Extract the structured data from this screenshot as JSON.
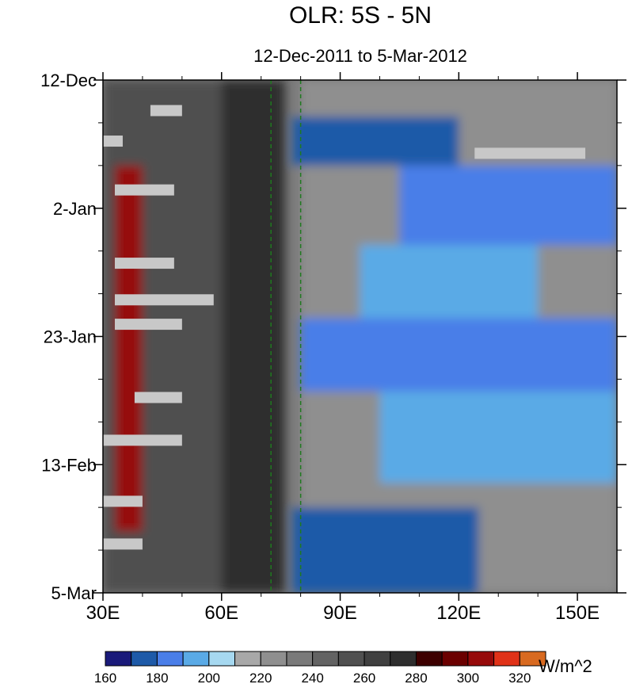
{
  "chart_data": {
    "type": "heatmap",
    "title": "OLR: 5S - 5N",
    "subtitle": "12-Dec-2011 to 5-Mar-2012",
    "colorbar_units": "W/m^2",
    "x_axis": {
      "range": [
        30,
        160
      ],
      "ticks": [
        30,
        60,
        90,
        120,
        150
      ],
      "tick_labels": [
        "30E",
        "60E",
        "90E",
        "120E",
        "150E"
      ]
    },
    "y_axis": {
      "range": [
        "12-Dec-2011",
        "5-Mar-2012"
      ],
      "ticks": [
        "12-Dec-2011",
        "2-Jan-2012",
        "23-Jan-2012",
        "13-Feb-2012",
        "5-Mar-2012"
      ],
      "tick_labels": [
        "12-Dec",
        "2-Jan",
        "23-Jan",
        "13-Feb",
        "5-Mar"
      ],
      "reversed": true
    },
    "reference_lines": {
      "longitudes": [
        72.5,
        80
      ],
      "color": "#1f7a1f",
      "style": "dashed"
    },
    "contour_levels": [
      160,
      170,
      180,
      190,
      200,
      210,
      220,
      230,
      240,
      250,
      260,
      270,
      280,
      290,
      300,
      310,
      320,
      330
    ],
    "colorbar_labels": [
      "160",
      "180",
      "200",
      "220",
      "240",
      "260",
      "280",
      "300",
      "320"
    ],
    "colorbar_colors": [
      "#1a1a7a",
      "#1e5aa8",
      "#4a7ee8",
      "#5aaae6",
      "#a6d8f0",
      "#a8a8a8",
      "#8f8f8f",
      "#7a7a7a",
      "#636363",
      "#505050",
      "#404040",
      "#2e2e2e",
      "#3d0000",
      "#6b0000",
      "#960a0a",
      "#e03218",
      "#d86a20"
    ],
    "missing_color": "#c8c8c8",
    "regions": [
      {
        "lon": [
          30,
          70
        ],
        "date": [
          "12-Dec-2011",
          "5-Mar-2012"
        ],
        "approx_value": 250
      },
      {
        "lon": [
          60,
          76
        ],
        "date": [
          "12-Dec-2011",
          "5-Mar-2012"
        ],
        "approx_value": 275
      },
      {
        "lon": [
          33,
          40
        ],
        "date": [
          "26-Dec-2011",
          "24-Feb-2012"
        ],
        "approx_value": 300
      },
      {
        "lon": [
          80,
          160
        ],
        "date": [
          "12-Dec-2011",
          "5-Mar-2012"
        ],
        "approx_value": 220
      },
      {
        "lon": [
          78,
          120
        ],
        "date": [
          "18-Dec-2011",
          "26-Dec-2011"
        ],
        "approx_value": 175
      },
      {
        "lon": [
          105,
          160
        ],
        "date": [
          "26-Dec-2011",
          "8-Jan-2012"
        ],
        "approx_value": 185
      },
      {
        "lon": [
          95,
          140
        ],
        "date": [
          "8-Jan-2012",
          "20-Jan-2012"
        ],
        "approx_value": 190
      },
      {
        "lon": [
          80,
          160
        ],
        "date": [
          "20-Jan-2012",
          "1-Feb-2012"
        ],
        "approx_value": 185
      },
      {
        "lon": [
          100,
          160
        ],
        "date": [
          "1-Feb-2012",
          "16-Feb-2012"
        ],
        "approx_value": 190
      },
      {
        "lon": [
          78,
          125
        ],
        "date": [
          "20-Feb-2012",
          "5-Mar-2012"
        ],
        "approx_value": 175
      }
    ],
    "missing_segments": [
      {
        "lon": [
          42,
          50
        ],
        "date": "17-Dec-2011"
      },
      {
        "lon": [
          30,
          35
        ],
        "date": "22-Dec-2011"
      },
      {
        "lon": [
          124,
          152
        ],
        "date": "24-Dec-2011"
      },
      {
        "lon": [
          33,
          48
        ],
        "date": "30-Dec-2011"
      },
      {
        "lon": [
          33,
          48
        ],
        "date": "11-Jan-2012"
      },
      {
        "lon": [
          33,
          58
        ],
        "date": "17-Jan-2012"
      },
      {
        "lon": [
          33,
          50
        ],
        "date": "21-Jan-2012"
      },
      {
        "lon": [
          38,
          50
        ],
        "date": "2-Feb-2012"
      },
      {
        "lon": [
          30,
          50
        ],
        "date": "9-Feb-2012"
      },
      {
        "lon": [
          30,
          40
        ],
        "date": "19-Feb-2012"
      },
      {
        "lon": [
          30,
          40
        ],
        "date": "26-Feb-2012"
      }
    ]
  }
}
